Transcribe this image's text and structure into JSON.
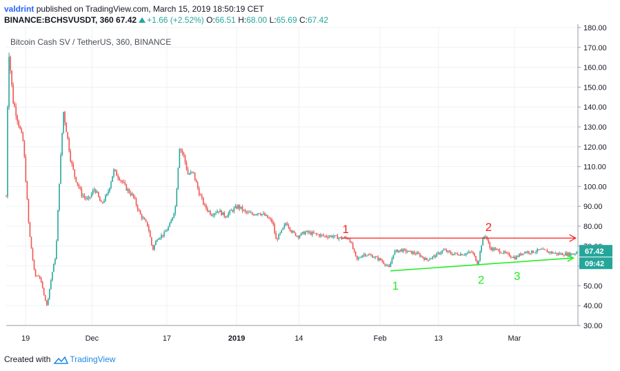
{
  "header": {
    "username": "valdrint",
    "published_text": "published on TradingView.com, March 15, 2019 18:50:19 CET",
    "symbol": "BINANCE:BCHSVUSDT, 360",
    "last_price": "67.42",
    "change": "+1.66 (+2.52%)",
    "open_label": "O:",
    "open": "66.51",
    "high_label": "H:",
    "high": "68.00",
    "low_label": "L:",
    "low": "65.69",
    "close_label": "C:",
    "close": "67.42"
  },
  "footer": {
    "created_with": "Created with",
    "brand": "TradingView"
  },
  "colors": {
    "up": "#26a69a",
    "down": "#ef5350",
    "resistance": "#ff1a1a",
    "support": "#22ee22",
    "grid": "#eef0f4"
  },
  "chart_data": {
    "type": "candlestick",
    "title": "Bitcoin Cash SV / TetherUS, 360, BINANCE",
    "ylim": [
      30,
      180
    ],
    "y_ticks": [
      "180.00",
      "170.00",
      "160.00",
      "150.00",
      "140.00",
      "130.00",
      "120.00",
      "110.00",
      "100.00",
      "90.00",
      "80.00",
      "70.00",
      "60.00",
      "50.00",
      "40.00",
      "30.00"
    ],
    "x_ticks": [
      "19",
      "Dec",
      "17",
      "2019",
      "14",
      "Feb",
      "13",
      "Mar"
    ],
    "x_tick_pos": [
      0.034,
      0.15,
      0.281,
      0.403,
      0.512,
      0.654,
      0.756,
      0.889
    ],
    "price_label": "67.42",
    "countdown_label": "09:42",
    "price_path": [
      [
        0.0,
        95
      ],
      [
        0.004,
        170
      ],
      [
        0.012,
        143
      ],
      [
        0.03,
        122
      ],
      [
        0.04,
        78
      ],
      [
        0.05,
        55
      ],
      [
        0.058,
        55
      ],
      [
        0.065,
        47
      ],
      [
        0.071,
        40
      ],
      [
        0.08,
        56
      ],
      [
        0.087,
        66
      ],
      [
        0.093,
        103
      ],
      [
        0.1,
        138
      ],
      [
        0.107,
        125
      ],
      [
        0.113,
        113
      ],
      [
        0.12,
        105
      ],
      [
        0.132,
        96
      ],
      [
        0.143,
        93
      ],
      [
        0.155,
        99
      ],
      [
        0.166,
        91
      ],
      [
        0.177,
        96
      ],
      [
        0.188,
        108
      ],
      [
        0.199,
        104
      ],
      [
        0.21,
        99
      ],
      [
        0.222,
        95
      ],
      [
        0.234,
        86
      ],
      [
        0.248,
        80
      ],
      [
        0.256,
        68
      ],
      [
        0.264,
        74
      ],
      [
        0.276,
        76
      ],
      [
        0.287,
        81
      ],
      [
        0.296,
        90
      ],
      [
        0.303,
        120
      ],
      [
        0.31,
        116
      ],
      [
        0.318,
        106
      ],
      [
        0.327,
        107
      ],
      [
        0.337,
        97
      ],
      [
        0.347,
        90
      ],
      [
        0.359,
        86
      ],
      [
        0.371,
        88
      ],
      [
        0.383,
        85
      ],
      [
        0.395,
        88
      ],
      [
        0.406,
        90
      ],
      [
        0.418,
        87
      ],
      [
        0.43,
        86
      ],
      [
        0.442,
        87
      ],
      [
        0.454,
        85
      ],
      [
        0.466,
        82
      ],
      [
        0.472,
        73
      ],
      [
        0.481,
        77
      ],
      [
        0.49,
        82
      ],
      [
        0.5,
        77
      ],
      [
        0.51,
        75
      ],
      [
        0.523,
        77
      ],
      [
        0.54,
        76
      ],
      [
        0.557,
        75
      ],
      [
        0.57,
        75
      ],
      [
        0.585,
        74
      ],
      [
        0.6,
        74
      ],
      [
        0.613,
        63
      ],
      [
        0.625,
        66
      ],
      [
        0.64,
        65
      ],
      [
        0.655,
        63
      ],
      [
        0.67,
        59
      ],
      [
        0.678,
        67
      ],
      [
        0.69,
        68
      ],
      [
        0.705,
        67
      ],
      [
        0.72,
        66
      ],
      [
        0.735,
        63
      ],
      [
        0.75,
        65
      ],
      [
        0.765,
        68
      ],
      [
        0.78,
        66
      ],
      [
        0.8,
        66
      ],
      [
        0.815,
        67
      ],
      [
        0.825,
        61
      ],
      [
        0.832,
        72
      ],
      [
        0.838,
        76
      ],
      [
        0.846,
        69
      ],
      [
        0.858,
        68
      ],
      [
        0.875,
        66
      ],
      [
        0.89,
        64
      ],
      [
        0.905,
        67
      ],
      [
        0.92,
        67
      ],
      [
        0.935,
        68
      ],
      [
        0.95,
        67
      ],
      [
        0.965,
        66
      ],
      [
        0.98,
        66
      ],
      [
        0.992,
        66
      ],
      [
        1.0,
        67.4
      ]
    ],
    "annotations": {
      "resistance": {
        "points": [
          [
            0.586,
            74
          ],
          [
            0.996,
            74
          ]
        ],
        "labels": [
          {
            "text": "1",
            "at": [
              0.588,
              76.5
            ]
          },
          {
            "text": "2",
            "at": [
              0.838,
              77.5
            ]
          }
        ]
      },
      "support": {
        "points": [
          [
            0.672,
            57.5
          ],
          [
            0.992,
            64
          ]
        ],
        "labels": [
          {
            "text": "1",
            "at": [
              0.675,
              48
            ]
          },
          {
            "text": "2",
            "at": [
              0.825,
              51
            ]
          },
          {
            "text": "3",
            "at": [
              0.888,
              53
            ]
          }
        ]
      }
    }
  }
}
